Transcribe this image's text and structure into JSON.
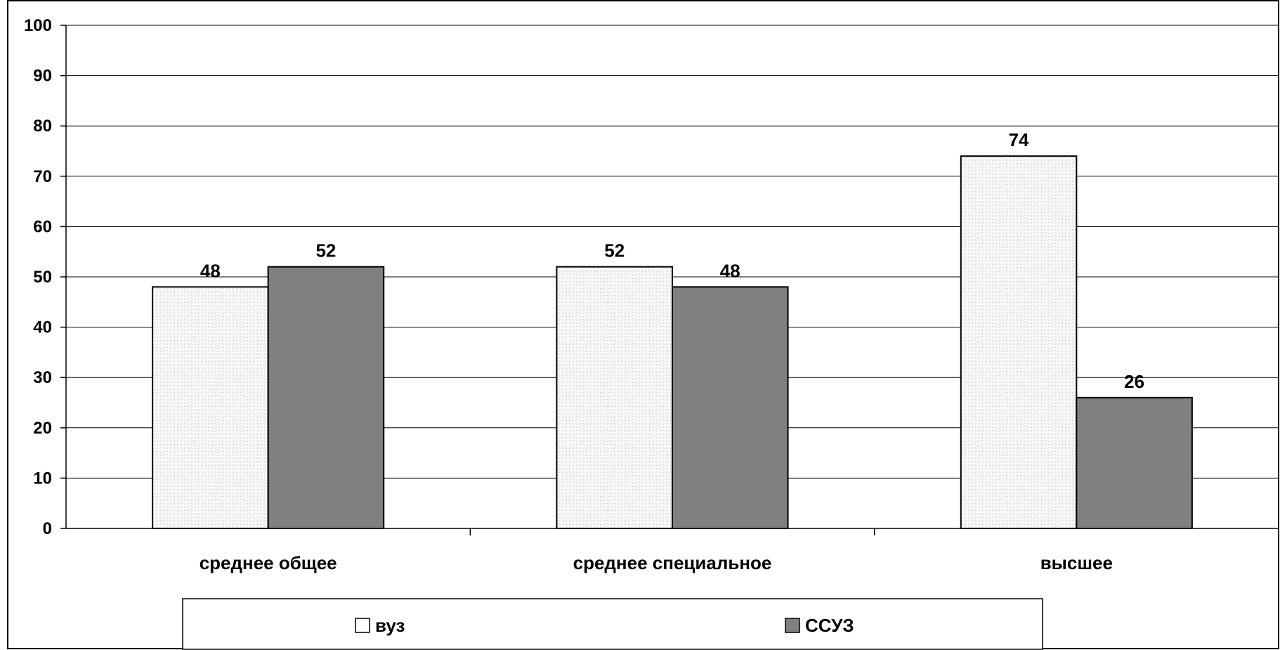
{
  "chart_data": {
    "type": "bar",
    "categories": [
      "среднее общее",
      "среднее специальное",
      "высшее"
    ],
    "series": [
      {
        "name": "вуз",
        "values": [
          48,
          52,
          74
        ],
        "color": "#f2f2f2"
      },
      {
        "name": "ССУЗ",
        "values": [
          52,
          48,
          26
        ],
        "color": "#808080"
      }
    ],
    "y_ticks": [
      "0",
      "10",
      "20",
      "30",
      "40",
      "50",
      "60",
      "70",
      "80",
      "90",
      "100"
    ],
    "ylim": [
      0,
      100
    ],
    "grid": true,
    "legend_position": "bottom",
    "data_labels": true
  }
}
